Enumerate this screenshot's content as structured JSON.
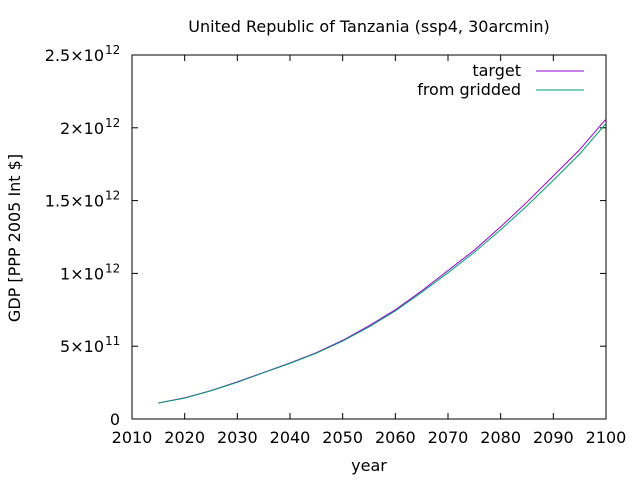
{
  "chart_data": {
    "type": "line",
    "title": "United Republic of Tanzania (ssp4, 30arcmin)",
    "xlabel": "year",
    "ylabel": "GDP [PPP 2005 Int $]",
    "xlim": [
      2010,
      2100
    ],
    "ylim": [
      0,
      2500000000000
    ],
    "xticks": [
      2010,
      2020,
      2030,
      2040,
      2050,
      2060,
      2070,
      2080,
      2090,
      2100
    ],
    "yticks": [
      {
        "value": 0,
        "mantissa": "0",
        "exp": ""
      },
      {
        "value": 500000000000,
        "mantissa": "5×10",
        "exp": "11"
      },
      {
        "value": 1000000000000,
        "mantissa": "1×10",
        "exp": "12"
      },
      {
        "value": 1500000000000,
        "mantissa": "1.5×10",
        "exp": "12"
      },
      {
        "value": 2000000000000,
        "mantissa": "2×10",
        "exp": "12"
      },
      {
        "value": 2500000000000,
        "mantissa": "2.5×10",
        "exp": "12"
      }
    ],
    "grid": false,
    "legend_position": "top-right",
    "series": [
      {
        "name": "target",
        "color": "#9400d3",
        "x": [
          2015,
          2020,
          2025,
          2030,
          2035,
          2040,
          2045,
          2050,
          2055,
          2060,
          2065,
          2070,
          2075,
          2080,
          2085,
          2090,
          2095,
          2100
        ],
        "values": [
          110000000000,
          145000000000,
          195000000000,
          255000000000,
          320000000000,
          385000000000,
          455000000000,
          540000000000,
          640000000000,
          750000000000,
          880000000000,
          1020000000000,
          1160000000000,
          1320000000000,
          1490000000000,
          1670000000000,
          1850000000000,
          2060000000000
        ]
      },
      {
        "name": "from gridded",
        "color": "#009e73",
        "x": [
          2015,
          2020,
          2025,
          2030,
          2035,
          2040,
          2045,
          2050,
          2055,
          2060,
          2065,
          2070,
          2075,
          2080,
          2085,
          2090,
          2095,
          2100
        ],
        "values": [
          110000000000,
          143000000000,
          194000000000,
          252000000000,
          318000000000,
          382000000000,
          452000000000,
          535000000000,
          632000000000,
          742000000000,
          870000000000,
          1005000000000,
          1145000000000,
          1300000000000,
          1465000000000,
          1640000000000,
          1820000000000,
          2030000000000
        ]
      }
    ]
  }
}
